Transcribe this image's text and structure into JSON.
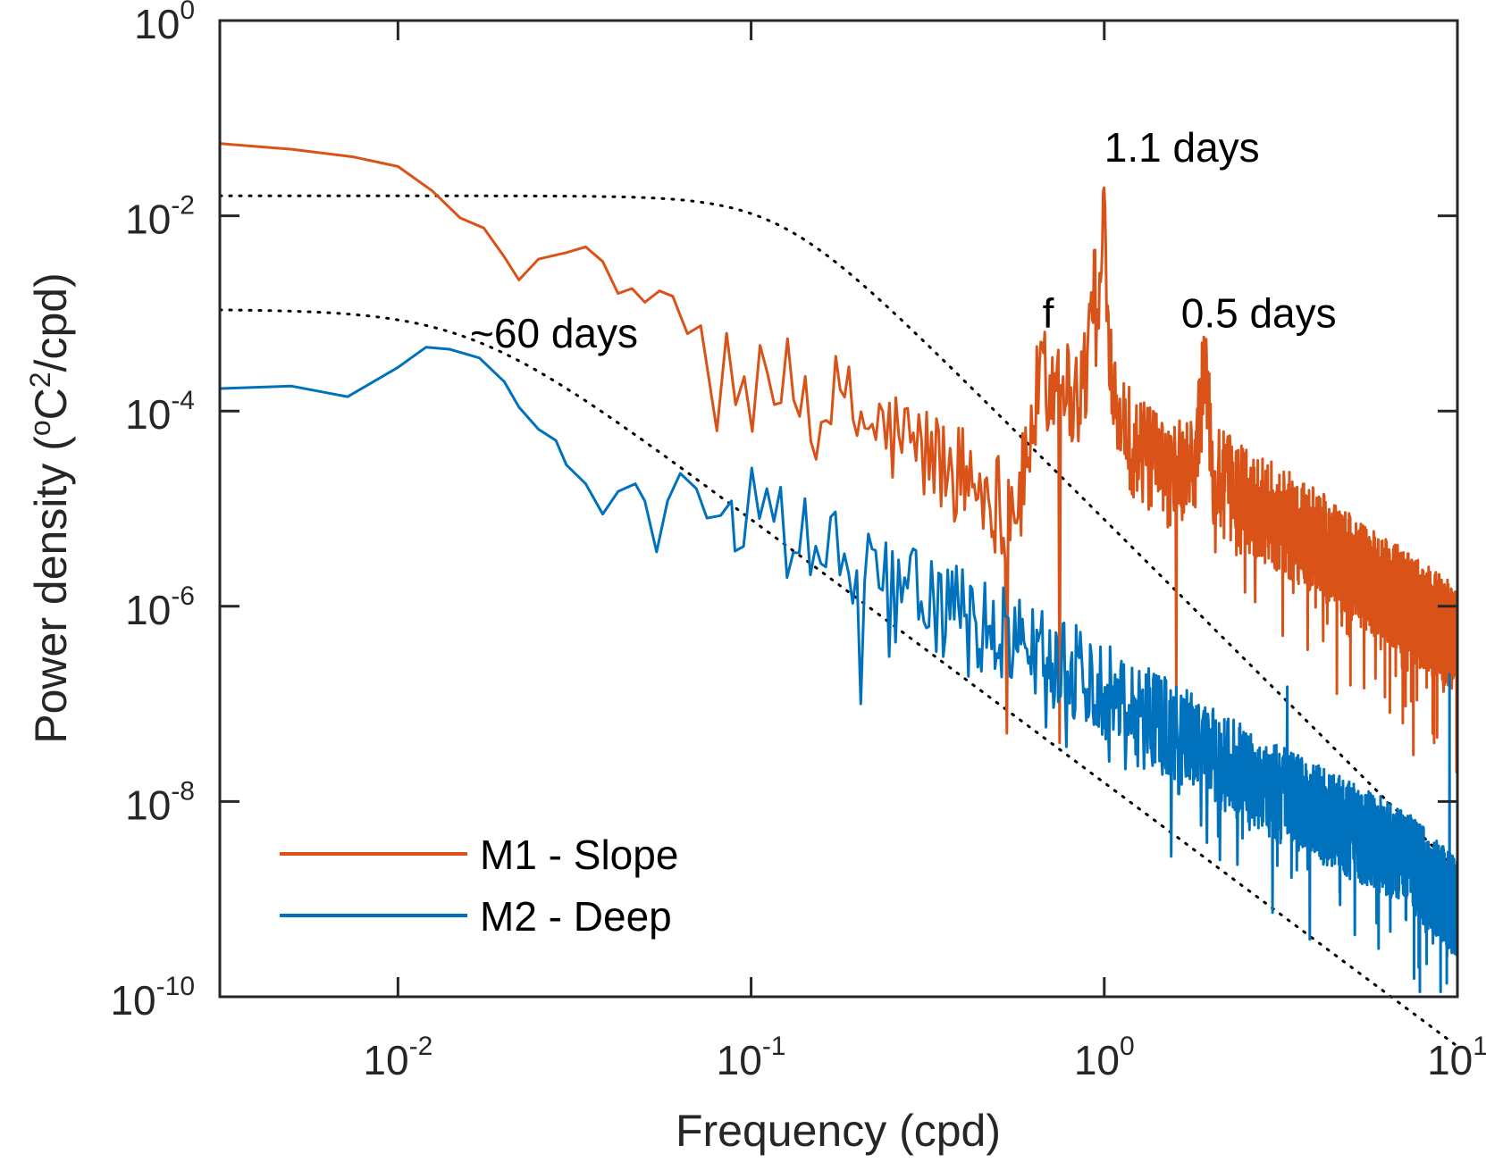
{
  "chart_data": {
    "type": "line",
    "xscale": "log",
    "yscale": "log",
    "xlabel": "Frequency (cpd)",
    "ylabel": {
      "prefix": "Power density (",
      "o": "o",
      "c": "C",
      "two": "2",
      "suffix": "/cpd)"
    },
    "xlim": [
      0.00313,
      10
    ],
    "ylim": [
      1e-10,
      1
    ],
    "x_ticks": [
      {
        "value": 0.01,
        "base": "10",
        "exp": "-2"
      },
      {
        "value": 0.1,
        "base": "10",
        "exp": "-1"
      },
      {
        "value": 1,
        "base": "10",
        "exp": "0"
      },
      {
        "value": 10,
        "base": "10",
        "exp": "1"
      }
    ],
    "y_ticks": [
      {
        "value": 1,
        "base": "10",
        "exp": "0"
      },
      {
        "value": 0.01,
        "base": "10",
        "exp": "-2"
      },
      {
        "value": 0.0001,
        "base": "10",
        "exp": "-4"
      },
      {
        "value": 1e-06,
        "base": "10",
        "exp": "-6"
      },
      {
        "value": 1e-08,
        "base": "10",
        "exp": "-8"
      },
      {
        "value": 1e-10,
        "base": "10",
        "exp": "-10"
      }
    ],
    "series": [
      {
        "name": "M1 - Slope",
        "color": "#D95319",
        "anchors": [
          [
            0.00313,
            0.055
          ],
          [
            0.005,
            0.048
          ],
          [
            0.0075,
            0.04
          ],
          [
            0.01,
            0.032
          ],
          [
            0.0125,
            0.018
          ],
          [
            0.015,
            0.0095
          ],
          [
            0.0175,
            0.0075
          ],
          [
            0.02,
            0.0038
          ],
          [
            0.022,
            0.0022
          ],
          [
            0.025,
            0.0036
          ],
          [
            0.03,
            0.0042
          ],
          [
            0.034,
            0.0048
          ],
          [
            0.038,
            0.0034
          ],
          [
            0.042,
            0.0016
          ],
          [
            0.046,
            0.0018
          ],
          [
            0.05,
            0.0013
          ],
          [
            0.055,
            0.0017
          ],
          [
            0.06,
            0.0015
          ],
          [
            0.066,
            0.00062
          ],
          [
            0.072,
            0.00075
          ],
          [
            0.08,
            0.00065
          ],
          [
            0.09,
            0.00032
          ],
          [
            0.1,
            0.00014
          ],
          [
            0.13,
            0.00016
          ],
          [
            0.17,
            0.00012
          ],
          [
            0.22,
            7e-05
          ],
          [
            0.3,
            4e-05
          ],
          [
            0.4,
            2.2e-05
          ],
          [
            0.5,
            1.2e-05
          ],
          [
            0.58,
            1.3e-05
          ],
          [
            0.62,
            6e-05
          ],
          [
            0.66,
            0.00022
          ],
          [
            0.72,
            0.00018
          ],
          [
            0.75,
            0.00045
          ],
          [
            0.8,
            0.00013
          ],
          [
            0.86,
            0.00016
          ],
          [
            0.9,
            0.00035
          ],
          [
            0.93,
            0.0025
          ],
          [
            0.96,
            0.00045
          ],
          [
            1.0,
            0.016
          ],
          [
            1.04,
            0.00035
          ],
          [
            1.1,
            0.00012
          ],
          [
            1.2,
            4.5e-05
          ],
          [
            1.5,
            2.2e-05
          ],
          [
            1.8,
            2.5e-05
          ],
          [
            1.93,
            0.0003
          ],
          [
            2.05,
            2e-05
          ],
          [
            2.5,
            1.3e-05
          ],
          [
            3.0,
            8.5e-06
          ],
          [
            4.0,
            4.5e-06
          ],
          [
            5.0,
            2.5e-06
          ],
          [
            7.0,
            1.1e-06
          ],
          [
            10.0,
            4.5e-07
          ]
        ],
        "noise_from": 0.08,
        "noise_amp": 0.55,
        "dips": [
          [
            0.53,
            0.05
          ],
          [
            0.75,
            0.04
          ],
          [
            1.6,
            0.12
          ],
          [
            3.2,
            0.5
          ],
          [
            4.8,
            0.9
          ],
          [
            7.5,
            0.03
          ]
        ]
      },
      {
        "name": "M2 - Deep",
        "color": "#0072BD",
        "anchors": [
          [
            0.00313,
            0.00017
          ],
          [
            0.005,
            0.00018
          ],
          [
            0.0072,
            0.00014
          ],
          [
            0.01,
            0.00028
          ],
          [
            0.012,
            0.00045
          ],
          [
            0.014,
            0.00043
          ],
          [
            0.017,
            0.00035
          ],
          [
            0.02,
            0.0002
          ],
          [
            0.022,
            0.00011
          ],
          [
            0.025,
            6.5e-05
          ],
          [
            0.028,
            5e-05
          ],
          [
            0.03,
            2.8e-05
          ],
          [
            0.034,
            1.8e-05
          ],
          [
            0.038,
            8.8e-06
          ],
          [
            0.042,
            1.5e-05
          ],
          [
            0.047,
            1.8e-05
          ],
          [
            0.05,
            1.2e-05
          ],
          [
            0.054,
            3.6e-06
          ],
          [
            0.058,
            1.2e-05
          ],
          [
            0.063,
            2.3e-05
          ],
          [
            0.07,
            1.6e-05
          ],
          [
            0.075,
            8e-06
          ],
          [
            0.082,
            8.5e-06
          ],
          [
            0.088,
            1.2e-05
          ],
          [
            0.093,
            1.8e-06
          ],
          [
            0.1,
            1.5e-05
          ],
          [
            0.11,
            7e-06
          ],
          [
            0.13,
            4.5e-06
          ],
          [
            0.15,
            4.2e-06
          ],
          [
            0.2,
            2.5e-06
          ],
          [
            0.3,
            1.2e-06
          ],
          [
            0.5,
            5.5e-07
          ],
          [
            0.7,
            3e-07
          ],
          [
            1.0,
            1.4e-07
          ],
          [
            1.5,
            6e-08
          ],
          [
            2.0,
            3e-08
          ],
          [
            3.0,
            1.3e-08
          ],
          [
            5.0,
            5e-09
          ],
          [
            7.0,
            2.8e-09
          ],
          [
            10.0,
            8e-10
          ]
        ],
        "noise_from": 0.09,
        "noise_amp": 0.5,
        "dips": [
          [
            0.205,
            0.1
          ],
          [
            0.63,
            0.3
          ],
          [
            1.07,
            0.2
          ],
          [
            3.3,
            0.15
          ],
          [
            9.5,
            0.2
          ]
        ]
      }
    ],
    "fits": [
      {
        "style": "dotted",
        "amplitude": 0.016,
        "corner": 0.12,
        "slope": 3.6
      },
      {
        "style": "dotted",
        "amplitude": 0.0011,
        "corner": 0.016,
        "slope": 2.7
      }
    ],
    "annotations": [
      {
        "text": "1.1 days",
        "x": 1.0,
        "y": 0.036,
        "anchor": "start"
      },
      {
        "text": "f",
        "x": 0.72,
        "y": 0.00072,
        "anchor": "end"
      },
      {
        "text": "0.5 days",
        "x": 1.65,
        "y": 0.00072,
        "anchor": "start"
      },
      {
        "text": "~60 days",
        "x": 0.016,
        "y": 0.00045,
        "anchor": "start"
      }
    ],
    "legend": {
      "position": "bottom-left",
      "entries": [
        "M1 - Slope",
        "M2 - Deep"
      ]
    }
  }
}
